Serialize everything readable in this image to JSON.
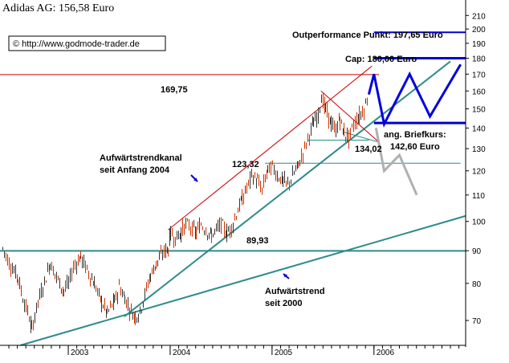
{
  "chart_data": {
    "type": "line",
    "title": "Adidas AG: 156,58 Euro",
    "watermark": "© http://www.godmode-trader.de",
    "y_scale": "log",
    "ylim": [
      64,
      212
    ],
    "y_ticks": [
      70,
      80,
      90,
      100,
      110,
      120,
      130,
      140,
      150,
      160,
      170,
      180,
      190,
      200,
      210
    ],
    "x_ticks": [
      "2003",
      "2004",
      "2005",
      "2006"
    ],
    "x_range": [
      2002.33,
      2006.9
    ],
    "price_series": [
      [
        2002.35,
        91
      ],
      [
        2002.42,
        86
      ],
      [
        2002.5,
        82
      ],
      [
        2002.55,
        76
      ],
      [
        2002.6,
        72
      ],
      [
        2002.64,
        68
      ],
      [
        2002.7,
        75
      ],
      [
        2002.76,
        80
      ],
      [
        2002.82,
        86
      ],
      [
        2002.88,
        82
      ],
      [
        2002.95,
        78
      ],
      [
        2003.0,
        80
      ],
      [
        2003.05,
        85
      ],
      [
        2003.12,
        88
      ],
      [
        2003.18,
        84
      ],
      [
        2003.25,
        80
      ],
      [
        2003.32,
        75
      ],
      [
        2003.38,
        72
      ],
      [
        2003.45,
        75
      ],
      [
        2003.5,
        79
      ],
      [
        2003.55,
        76
      ],
      [
        2003.6,
        73
      ],
      [
        2003.65,
        71
      ],
      [
        2003.7,
        72
      ],
      [
        2003.75,
        77
      ],
      [
        2003.8,
        82
      ],
      [
        2003.86,
        86
      ],
      [
        2003.92,
        89
      ],
      [
        2003.98,
        91
      ],
      [
        2004.0,
        96
      ],
      [
        2004.05,
        94
      ],
      [
        2004.1,
        96
      ],
      [
        2004.15,
        99
      ],
      [
        2004.2,
        98
      ],
      [
        2004.25,
        96
      ],
      [
        2004.3,
        99
      ],
      [
        2004.35,
        97
      ],
      [
        2004.4,
        95
      ],
      [
        2004.45,
        97
      ],
      [
        2004.5,
        99
      ],
      [
        2004.55,
        96
      ],
      [
        2004.6,
        98
      ],
      [
        2004.65,
        103
      ],
      [
        2004.7,
        108
      ],
      [
        2004.75,
        113
      ],
      [
        2004.8,
        118
      ],
      [
        2004.85,
        116
      ],
      [
        2004.9,
        112
      ],
      [
        2004.95,
        120
      ],
      [
        2005.0,
        122
      ],
      [
        2005.05,
        118
      ],
      [
        2005.1,
        116
      ],
      [
        2005.15,
        114
      ],
      [
        2005.2,
        118
      ],
      [
        2005.25,
        122
      ],
      [
        2005.3,
        128
      ],
      [
        2005.35,
        135
      ],
      [
        2005.4,
        142
      ],
      [
        2005.45,
        147
      ],
      [
        2005.48,
        157
      ],
      [
        2005.52,
        150
      ],
      [
        2005.58,
        142
      ],
      [
        2005.62,
        138
      ],
      [
        2005.66,
        145
      ],
      [
        2005.7,
        138
      ],
      [
        2005.75,
        135
      ],
      [
        2005.8,
        142
      ],
      [
        2005.85,
        146
      ],
      [
        2005.9,
        150
      ],
      [
        2005.95,
        158
      ]
    ],
    "projection_up": [
      [
        2005.95,
        158
      ],
      [
        2006.0,
        170
      ],
      [
        2006.1,
        142
      ],
      [
        2006.35,
        170
      ],
      [
        2006.55,
        146
      ],
      [
        2006.85,
        176
      ]
    ],
    "projection_down": [
      [
        2006.02,
        140
      ],
      [
        2006.1,
        120
      ],
      [
        2006.25,
        127
      ],
      [
        2006.42,
        110
      ]
    ],
    "lines": [
      {
        "name": "outperformance",
        "kind": "hline",
        "y": 197.65,
        "x0": 2006.0,
        "x1": 2006.9,
        "color": "#0000cc",
        "width": 2
      },
      {
        "name": "cap",
        "kind": "hline",
        "y": 180,
        "x0": 2006.0,
        "x1": 2006.9,
        "color": "#0000cc",
        "width": 3
      },
      {
        "name": "briefkurs",
        "kind": "hline",
        "y": 142.6,
        "x0": 2006.0,
        "x1": 2006.9,
        "color": "#0000cc",
        "width": 3
      },
      {
        "name": "resistance-169",
        "kind": "hline",
        "y": 169.75,
        "x0": 2002.33,
        "x1": 2006.05,
        "color": "#cc0000",
        "width": 1
      },
      {
        "name": "level-123",
        "kind": "hline",
        "y": 123.32,
        "x0": 2004.93,
        "x1": 2006.85,
        "color": "#2e8b8b",
        "width": 1
      },
      {
        "name": "level-134",
        "kind": "hline",
        "y": 134.02,
        "x0": 2005.35,
        "x1": 2005.95,
        "color": "#2e8b8b",
        "width": 1
      },
      {
        "name": "support-90",
        "kind": "hline",
        "y": 89.93,
        "x0": 2002.33,
        "x1": 2006.9,
        "color": "#2e8b8b",
        "width": 2
      },
      {
        "name": "channel-upper",
        "kind": "seg",
        "p0": [
          2003.98,
          97
        ],
        "p1": [
          2005.98,
          175
        ],
        "color": "#cc0000",
        "width": 1
      },
      {
        "name": "channel-lower",
        "kind": "seg",
        "p0": [
          2003.55,
          71
        ],
        "p1": [
          2006.75,
          178
        ],
        "color": "#2e8b8b",
        "width": 2
      },
      {
        "name": "trend-2000",
        "kind": "seg",
        "p0": [
          2002.53,
          64
        ],
        "p1": [
          2006.9,
          102
        ],
        "color": "#2e8b8b",
        "width": 2
      },
      {
        "name": "triangle-upper",
        "kind": "seg",
        "p0": [
          2005.48,
          160
        ],
        "p1": [
          2006.05,
          133
        ],
        "color": "#cc0000",
        "width": 1
      },
      {
        "name": "triangle-lower",
        "kind": "seg",
        "p0": [
          2005.7,
          138
        ],
        "p1": [
          2006.05,
          133
        ],
        "color": "#2e8b8b",
        "width": 1
      }
    ],
    "annotations": {
      "outperformance": "Outperformance Punkt: 197,65 Euro",
      "cap": "Cap: 180,00 Euro",
      "briefkurs_1": "ang. Briefkurs:",
      "briefkurs_2": "142,60 Euro",
      "resistance": "169,75",
      "level_134": "134,02",
      "level_123": "123,32",
      "support": "89,93",
      "channel_1": "Aufwärtstrendkanal",
      "channel_2": "seit Anfang 2004",
      "trend_1": "Aufwärtstrend",
      "trend_2": "seit 2000"
    },
    "colors": {
      "candle_up": "#333333",
      "candle_down": "#cc3300",
      "projection_up": "#0000dd",
      "projection_down": "#b0b0b0",
      "text": "#000000"
    },
    "grid": false,
    "legend": "none"
  }
}
